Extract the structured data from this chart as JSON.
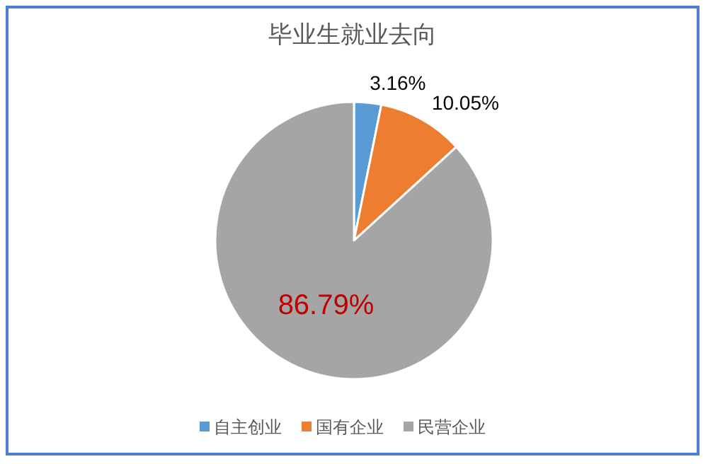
{
  "chart_data": {
    "type": "pie",
    "title": "毕业生就业去向",
    "categories": [
      "自主创业",
      "国有企业",
      "民营企业"
    ],
    "values": [
      3.16,
      10.05,
      86.79
    ],
    "colors": [
      "#5b9bd5",
      "#ed7d31",
      "#a5a5a5"
    ],
    "value_labels": [
      "3.16%",
      "10.05%",
      "86.79%"
    ],
    "legend": "bottom"
  }
}
